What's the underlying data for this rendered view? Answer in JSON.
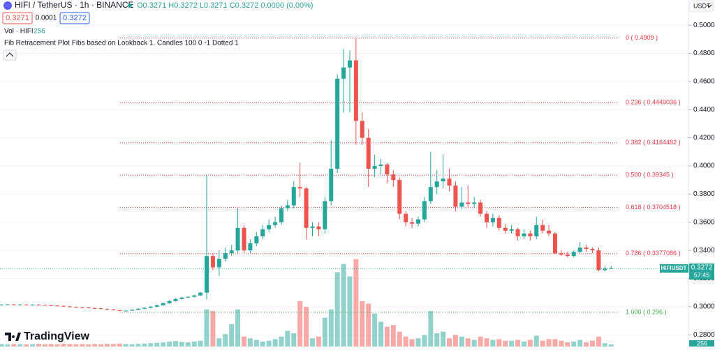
{
  "chart_data": {
    "type": "candlestick",
    "symbol": "HIFI / TetherUS · 1h · BINANCE",
    "ohlc_text": "O0.3271 H0.3272 L0.3271 C0.3272 0.0000 (0.00%)",
    "bid": "0.3271",
    "spread": "0.0001",
    "ask": "0.3272",
    "volume_title": "Vol · HIFI",
    "volume_last": "256",
    "indicator_title": "Fib Retracement Plot Fibs based on Lookback 1. Candles 100 0 -1 Dotted 1",
    "currency": "USDT",
    "last_symbol": "HIFIUSDT",
    "last_price_label": "0.3272",
    "countdown": "57:45",
    "brand": "TradingView",
    "up_color": "#26a69a",
    "down_color": "#ef5350",
    "ylim": [
      0.2717,
      0.5179
    ],
    "yticks": [
      {
        "value": 0.5,
        "label": "0.5000"
      },
      {
        "value": 0.48,
        "label": "0.4800"
      },
      {
        "value": 0.46,
        "label": "0.4600"
      },
      {
        "value": 0.44,
        "label": "0.4400"
      },
      {
        "value": 0.42,
        "label": "0.4200"
      },
      {
        "value": 0.4,
        "label": "0.4000"
      },
      {
        "value": 0.38,
        "label": "0.3800"
      },
      {
        "value": 0.36,
        "label": "0.3600"
      },
      {
        "value": 0.34,
        "label": "0.3400"
      },
      {
        "value": 0.32,
        "label": "0.3200"
      },
      {
        "value": 0.3,
        "label": "0.3000"
      },
      {
        "value": 0.28,
        "label": "0.2800"
      }
    ],
    "grid": true,
    "vlim": [
      0,
      42000
    ],
    "fibs": [
      {
        "label": "0 ( 0.4909 )",
        "value": 0.4909,
        "color": "#f23645"
      },
      {
        "label": "0.236 ( 0.4449036 )",
        "value": 0.4449036,
        "color": "#f23645"
      },
      {
        "label": "0.382 ( 0.4164482 )",
        "value": 0.4164482,
        "color": "#f23645"
      },
      {
        "label": "0.500 ( 0.39345 )",
        "value": 0.39345,
        "color": "#f23645"
      },
      {
        "label": "0.618 ( 0.3704518 )",
        "value": 0.3704518,
        "color": "#f23645"
      },
      {
        "label": "0.786 ( 0.3377086 )",
        "value": 0.3377086,
        "color": "#f23645"
      },
      {
        "label": "1.000 ( 0.296 )",
        "value": 0.296,
        "color": "#4caf50"
      }
    ],
    "open": [
      0.3014,
      0.3015,
      0.3016,
      0.3014,
      0.3015,
      0.3013,
      0.3014,
      0.3012,
      0.301,
      0.3008,
      0.3006,
      0.3002,
      0.2998,
      0.2996,
      0.2994,
      0.299,
      0.2988,
      0.2984,
      0.298,
      0.2975,
      0.297,
      0.2972,
      0.2978,
      0.2985,
      0.2992,
      0.3,
      0.301,
      0.3025,
      0.304,
      0.3055,
      0.3065,
      0.307,
      0.308,
      0.31,
      0.336,
      0.328,
      0.334,
      0.338,
      0.34,
      0.356,
      0.34,
      0.345,
      0.35,
      0.355,
      0.358,
      0.36,
      0.37,
      0.372,
      0.385,
      0.384,
      0.356,
      0.357,
      0.355,
      0.375,
      0.398,
      0.462,
      0.47,
      0.475,
      0.432,
      0.42,
      0.398,
      0.4,
      0.401,
      0.394,
      0.39,
      0.366,
      0.36,
      0.359,
      0.362,
      0.375,
      0.385,
      0.389,
      0.391,
      0.386,
      0.371,
      0.374,
      0.373,
      0.374,
      0.366,
      0.36,
      0.363,
      0.356,
      0.354,
      0.355,
      0.35,
      0.352,
      0.35,
      0.358,
      0.354,
      0.352,
      0.338,
      0.337,
      0.336,
      0.339,
      0.342,
      0.341,
      0.34,
      0.326,
      0.3271
    ],
    "high": [
      0.3019,
      0.302,
      0.3019,
      0.3019,
      0.3018,
      0.3018,
      0.3017,
      0.3015,
      0.3013,
      0.3011,
      0.3009,
      0.3006,
      0.3002,
      0.3,
      0.2998,
      0.2994,
      0.2992,
      0.2988,
      0.2984,
      0.2979,
      0.2976,
      0.2982,
      0.299,
      0.2996,
      0.3005,
      0.3016,
      0.303,
      0.3046,
      0.306,
      0.307,
      0.3075,
      0.3085,
      0.3105,
      0.3935,
      0.338,
      0.34,
      0.342,
      0.344,
      0.37,
      0.358,
      0.348,
      0.353,
      0.358,
      0.362,
      0.364,
      0.372,
      0.376,
      0.389,
      0.402,
      0.385,
      0.36,
      0.36,
      0.378,
      0.418,
      0.465,
      0.483,
      0.482,
      0.4909,
      0.438,
      0.426,
      0.408,
      0.405,
      0.402,
      0.397,
      0.392,
      0.368,
      0.363,
      0.364,
      0.378,
      0.41,
      0.397,
      0.408,
      0.398,
      0.389,
      0.385,
      0.386,
      0.378,
      0.376,
      0.368,
      0.366,
      0.365,
      0.359,
      0.358,
      0.356,
      0.355,
      0.354,
      0.364,
      0.362,
      0.358,
      0.353,
      0.34,
      0.339,
      0.34,
      0.346,
      0.344,
      0.342,
      0.342,
      0.329,
      0.329
    ],
    "low": [
      0.301,
      0.3012,
      0.3011,
      0.3011,
      0.301,
      0.301,
      0.3009,
      0.3007,
      0.3005,
      0.3003,
      0.2999,
      0.2995,
      0.2993,
      0.2991,
      0.2987,
      0.2985,
      0.2981,
      0.2977,
      0.2972,
      0.2967,
      0.2967,
      0.297,
      0.2975,
      0.2982,
      0.2989,
      0.2996,
      0.3006,
      0.302,
      0.3035,
      0.305,
      0.306,
      0.3065,
      0.3075,
      0.305,
      0.326,
      0.322,
      0.332,
      0.336,
      0.338,
      0.338,
      0.338,
      0.343,
      0.348,
      0.353,
      0.356,
      0.358,
      0.368,
      0.37,
      0.378,
      0.348,
      0.35,
      0.35,
      0.352,
      0.372,
      0.395,
      0.438,
      0.438,
      0.415,
      0.415,
      0.385,
      0.392,
      0.394,
      0.388,
      0.385,
      0.362,
      0.357,
      0.356,
      0.357,
      0.36,
      0.373,
      0.38,
      0.384,
      0.382,
      0.368,
      0.369,
      0.37,
      0.37,
      0.364,
      0.356,
      0.357,
      0.354,
      0.352,
      0.352,
      0.347,
      0.348,
      0.347,
      0.348,
      0.352,
      0.35,
      0.337,
      0.336,
      0.335,
      0.335,
      0.338,
      0.339,
      0.338,
      0.325,
      0.325,
      0.3271
    ],
    "close": [
      0.3015,
      0.3016,
      0.3014,
      0.3015,
      0.3013,
      0.3014,
      0.3012,
      0.301,
      0.3008,
      0.3006,
      0.3002,
      0.2998,
      0.2996,
      0.2994,
      0.299,
      0.2988,
      0.2984,
      0.298,
      0.2975,
      0.297,
      0.2972,
      0.2978,
      0.2985,
      0.2992,
      0.3,
      0.301,
      0.3025,
      0.304,
      0.3055,
      0.3065,
      0.307,
      0.308,
      0.31,
      0.336,
      0.328,
      0.334,
      0.338,
      0.34,
      0.356,
      0.34,
      0.345,
      0.35,
      0.355,
      0.358,
      0.36,
      0.37,
      0.372,
      0.385,
      0.384,
      0.356,
      0.357,
      0.355,
      0.375,
      0.398,
      0.462,
      0.47,
      0.475,
      0.432,
      0.42,
      0.398,
      0.4,
      0.401,
      0.394,
      0.39,
      0.366,
      0.36,
      0.359,
      0.362,
      0.375,
      0.385,
      0.389,
      0.391,
      0.386,
      0.371,
      0.374,
      0.373,
      0.374,
      0.366,
      0.36,
      0.363,
      0.356,
      0.354,
      0.355,
      0.35,
      0.352,
      0.35,
      0.358,
      0.354,
      0.352,
      0.338,
      0.337,
      0.336,
      0.339,
      0.342,
      0.341,
      0.34,
      0.326,
      0.327,
      0.3272
    ],
    "volume": [
      300,
      250,
      300,
      280,
      260,
      300,
      320,
      280,
      300,
      260,
      350,
      300,
      280,
      300,
      260,
      300,
      280,
      320,
      300,
      350,
      300,
      280,
      320,
      350,
      400,
      450,
      500,
      600,
      650,
      550,
      500,
      600,
      700,
      4500,
      4300,
      1000,
      1500,
      2700,
      4500,
      1200,
      1000,
      800,
      600,
      700,
      900,
      1200,
      1900,
      1600,
      5500,
      4800,
      1000,
      1200,
      3500,
      4500,
      9000,
      10000,
      8500,
      10600,
      5500,
      5200,
      4000,
      3000,
      2400,
      2600,
      1800,
      1200,
      900,
      1000,
      1400,
      4300,
      1600,
      1800,
      1000,
      1400,
      1200,
      1000,
      800,
      1200,
      1000,
      800,
      900,
      700,
      700,
      800,
      600,
      800,
      1300,
      700,
      900,
      900,
      700,
      500,
      600,
      800,
      500,
      700,
      1200,
      400,
      256
    ]
  }
}
